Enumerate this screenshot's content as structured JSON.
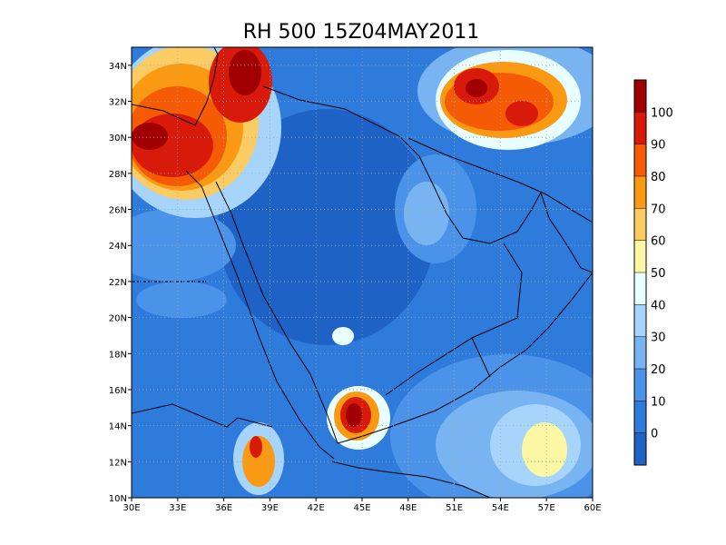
{
  "title": "RH 500 15Z04MAY2011",
  "map": {
    "xlim": [
      30,
      60
    ],
    "ylim": [
      10,
      35
    ],
    "xticks": [
      {
        "value": 30,
        "label": "30E"
      },
      {
        "value": 33,
        "label": "33E"
      },
      {
        "value": 36,
        "label": "36E"
      },
      {
        "value": 39,
        "label": "39E"
      },
      {
        "value": 42,
        "label": "42E"
      },
      {
        "value": 45,
        "label": "45E"
      },
      {
        "value": 48,
        "label": "48E"
      },
      {
        "value": 51,
        "label": "51E"
      },
      {
        "value": 54,
        "label": "54E"
      },
      {
        "value": 57,
        "label": "57E"
      },
      {
        "value": 60,
        "label": "60E"
      }
    ],
    "yticks": [
      {
        "value": 10,
        "label": "10N"
      },
      {
        "value": 12,
        "label": "12N"
      },
      {
        "value": 14,
        "label": "14N"
      },
      {
        "value": 16,
        "label": "16N"
      },
      {
        "value": 18,
        "label": "18N"
      },
      {
        "value": 20,
        "label": "20N"
      },
      {
        "value": 22,
        "label": "22N"
      },
      {
        "value": 24,
        "label": "24N"
      },
      {
        "value": 26,
        "label": "26N"
      },
      {
        "value": 28,
        "label": "28N"
      },
      {
        "value": 30,
        "label": "30N"
      },
      {
        "value": 32,
        "label": "32N"
      },
      {
        "value": 34,
        "label": "34N"
      }
    ],
    "grid": true
  },
  "colorbar": {
    "levels": [
      0,
      10,
      20,
      30,
      40,
      50,
      60,
      70,
      80,
      90,
      100
    ],
    "colors": [
      "#1f62c6",
      "#2f7bdc",
      "#4b93e8",
      "#78b4f2",
      "#a6d4fa",
      "#e8feff",
      "#fbf7a4",
      "#fbcb64",
      "#fa9a12",
      "#f55a05",
      "#d81a0a",
      "#a00000"
    ]
  }
}
